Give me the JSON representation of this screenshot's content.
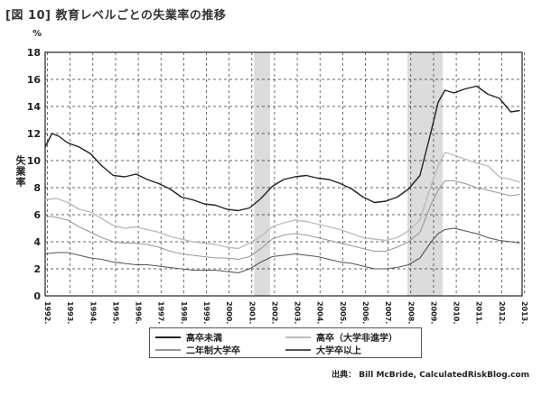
{
  "figure": {
    "title": "[図 10] 教育レベルごとの失業率の推移",
    "unit": "%",
    "ylabel": "失業率",
    "source": "出典： Bill McBride, CalculatedRiskBlog.com"
  },
  "chart_data": {
    "type": "line",
    "title": "[図 10] 教育レベルごとの失業率の推移",
    "ylabel": "失業率",
    "yunit": "%",
    "ylim": [
      0,
      18
    ],
    "yticks": [
      0,
      2,
      4,
      6,
      8,
      10,
      12,
      14,
      16,
      18
    ],
    "xlim": [
      1992.0,
      2013.0
    ],
    "xticks": [
      "1992.1",
      "1993.1",
      "1994.1",
      "1995.1",
      "1996.1",
      "1997.1",
      "1998.1",
      "1999.1",
      "2000.1",
      "2001.1",
      "2002.1",
      "2003.1",
      "2004.1",
      "2005.1",
      "2006.1",
      "2007.1",
      "2008.1",
      "2009.1",
      "2010.1",
      "2011.1",
      "2012.1",
      "2013.1"
    ],
    "grid": true,
    "recessions": [
      [
        2001.2,
        2001.9
      ],
      [
        2007.95,
        2009.5
      ]
    ],
    "legend_position": "bottom",
    "series": [
      {
        "name": "高卒未満",
        "color": "#222222",
        "width": 1.4,
        "x": [
          1992.0,
          1992.3,
          1992.6,
          1993.0,
          1993.5,
          1994.0,
          1994.5,
          1995.0,
          1995.5,
          1996.0,
          1996.5,
          1997.0,
          1997.5,
          1998.0,
          1998.5,
          1999.0,
          1999.5,
          2000.0,
          2000.5,
          2001.0,
          2001.5,
          2002.0,
          2002.5,
          2003.0,
          2003.5,
          2004.0,
          2004.5,
          2005.0,
          2005.5,
          2006.0,
          2006.5,
          2007.0,
          2007.5,
          2008.0,
          2008.5,
          2009.0,
          2009.3,
          2009.6,
          2010.0,
          2010.5,
          2011.0,
          2011.5,
          2012.0,
          2012.5,
          2012.9
        ],
        "y": [
          11.0,
          12.0,
          11.8,
          11.3,
          11.0,
          10.5,
          9.6,
          8.9,
          8.8,
          9.0,
          8.6,
          8.3,
          7.9,
          7.3,
          7.1,
          6.8,
          6.7,
          6.4,
          6.3,
          6.5,
          7.2,
          8.1,
          8.6,
          8.8,
          8.9,
          8.7,
          8.6,
          8.3,
          7.9,
          7.3,
          6.9,
          7.0,
          7.3,
          7.9,
          8.9,
          12.2,
          14.3,
          15.2,
          15.0,
          15.3,
          15.5,
          14.9,
          14.6,
          13.6,
          13.7
        ]
      },
      {
        "name": "高卒（大学非進学）",
        "color": "#bcbcbc",
        "width": 1.4,
        "x": [
          1992.0,
          1992.5,
          1993.0,
          1993.5,
          1994.0,
          1994.5,
          1995.0,
          1995.5,
          1996.0,
          1996.5,
          1997.0,
          1997.5,
          1998.0,
          1998.5,
          1999.0,
          1999.5,
          2000.0,
          2000.5,
          2001.0,
          2001.5,
          2002.0,
          2002.5,
          2003.0,
          2003.5,
          2004.0,
          2004.5,
          2005.0,
          2005.5,
          2006.0,
          2006.5,
          2007.0,
          2007.5,
          2008.0,
          2008.5,
          2009.0,
          2009.3,
          2009.6,
          2010.0,
          2010.5,
          2011.0,
          2011.5,
          2012.0,
          2012.5,
          2012.9
        ],
        "y": [
          7.1,
          7.2,
          6.9,
          6.4,
          6.2,
          5.7,
          5.2,
          5.0,
          5.1,
          4.9,
          4.7,
          4.4,
          4.2,
          4.0,
          3.9,
          3.8,
          3.6,
          3.5,
          3.9,
          4.4,
          5.1,
          5.4,
          5.6,
          5.5,
          5.3,
          5.1,
          4.9,
          4.6,
          4.3,
          4.2,
          4.1,
          4.3,
          4.8,
          5.6,
          8.2,
          9.6,
          10.6,
          10.4,
          10.1,
          9.8,
          9.6,
          8.8,
          8.6,
          8.4
        ]
      },
      {
        "name": "二年制大学卒",
        "color": "#999999",
        "width": 1.1,
        "x": [
          1992.0,
          1992.5,
          1993.0,
          1993.5,
          1994.0,
          1994.5,
          1995.0,
          1995.5,
          1996.0,
          1996.5,
          1997.0,
          1997.5,
          1998.0,
          1998.5,
          1999.0,
          1999.5,
          2000.0,
          2000.5,
          2001.0,
          2001.5,
          2002.0,
          2002.5,
          2003.0,
          2003.5,
          2004.0,
          2004.5,
          2005.0,
          2005.5,
          2006.0,
          2006.5,
          2007.0,
          2007.5,
          2008.0,
          2008.5,
          2009.0,
          2009.3,
          2009.6,
          2010.0,
          2010.5,
          2011.0,
          2011.5,
          2012.0,
          2012.5,
          2012.9
        ],
        "y": [
          5.9,
          5.8,
          5.6,
          5.1,
          4.7,
          4.3,
          4.0,
          3.9,
          3.9,
          3.8,
          3.6,
          3.3,
          3.1,
          3.0,
          2.9,
          2.8,
          2.8,
          2.7,
          2.9,
          3.5,
          4.2,
          4.5,
          4.6,
          4.5,
          4.3,
          4.1,
          3.9,
          3.7,
          3.5,
          3.3,
          3.3,
          3.6,
          4.0,
          4.7,
          6.8,
          7.8,
          8.5,
          8.5,
          8.3,
          8.0,
          7.8,
          7.6,
          7.4,
          7.5
        ]
      },
      {
        "name": "大学卒以上",
        "color": "#555555",
        "width": 1.1,
        "x": [
          1992.0,
          1992.5,
          1993.0,
          1993.5,
          1994.0,
          1994.5,
          1995.0,
          1995.5,
          1996.0,
          1996.5,
          1997.0,
          1997.5,
          1998.0,
          1998.5,
          1999.0,
          1999.5,
          2000.0,
          2000.5,
          2001.0,
          2001.5,
          2002.0,
          2002.5,
          2003.0,
          2003.5,
          2004.0,
          2004.5,
          2005.0,
          2005.5,
          2006.0,
          2006.5,
          2007.0,
          2007.5,
          2008.0,
          2008.5,
          2009.0,
          2009.3,
          2009.6,
          2010.0,
          2010.5,
          2011.0,
          2011.5,
          2012.0,
          2012.5,
          2012.9
        ],
        "y": [
          3.1,
          3.2,
          3.2,
          3.0,
          2.8,
          2.7,
          2.5,
          2.4,
          2.3,
          2.3,
          2.2,
          2.1,
          2.0,
          1.9,
          1.9,
          1.9,
          1.8,
          1.7,
          2.0,
          2.5,
          2.9,
          3.0,
          3.1,
          3.0,
          2.9,
          2.7,
          2.5,
          2.4,
          2.2,
          2.0,
          2.0,
          2.1,
          2.3,
          2.8,
          4.0,
          4.6,
          4.9,
          5.0,
          4.8,
          4.6,
          4.3,
          4.1,
          4.0,
          3.9
        ]
      }
    ]
  }
}
